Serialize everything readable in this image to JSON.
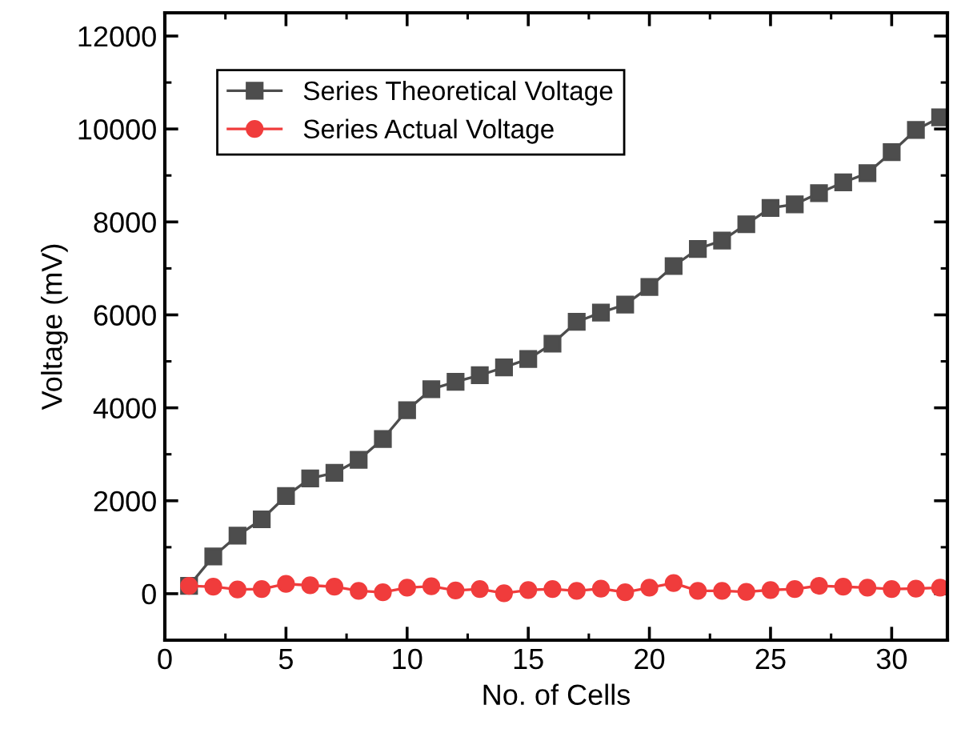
{
  "chart_data": {
    "type": "line",
    "xlabel": "No. of Cells",
    "ylabel": "Voltage (mV)",
    "x": [
      1,
      2,
      3,
      4,
      5,
      6,
      7,
      8,
      9,
      10,
      11,
      12,
      13,
      14,
      15,
      16,
      17,
      18,
      19,
      20,
      21,
      22,
      23,
      24,
      25,
      26,
      27,
      28,
      29,
      30,
      31,
      32
    ],
    "series": [
      {
        "name": "Series Theoretical Voltage",
        "color": "#4d4d4d",
        "marker": "square",
        "values": [
          170,
          800,
          1250,
          1600,
          2100,
          2480,
          2600,
          2880,
          3330,
          3950,
          4400,
          4560,
          4700,
          4870,
          5050,
          5380,
          5850,
          6050,
          6220,
          6600,
          7050,
          7420,
          7600,
          7950,
          8300,
          8380,
          8620,
          8850,
          9050,
          9500,
          9980,
          10250
        ]
      },
      {
        "name": "Series Actual Voltage",
        "color": "#f03c3c",
        "marker": "circle",
        "values": [
          170,
          150,
          90,
          100,
          210,
          180,
          150,
          60,
          30,
          130,
          160,
          70,
          100,
          10,
          80,
          100,
          60,
          110,
          30,
          130,
          230,
          60,
          60,
          40,
          80,
          100,
          170,
          150,
          130,
          100,
          110,
          130
        ]
      }
    ],
    "xlim": [
      0,
      32.3
    ],
    "xticks": [
      0,
      5,
      10,
      15,
      20,
      25,
      30
    ],
    "ylim": [
      -1000,
      12500
    ],
    "yticks": [
      0,
      2000,
      4000,
      6000,
      8000,
      10000,
      12000
    ],
    "grid": false,
    "legend": "top left",
    "line_style": "solid"
  }
}
